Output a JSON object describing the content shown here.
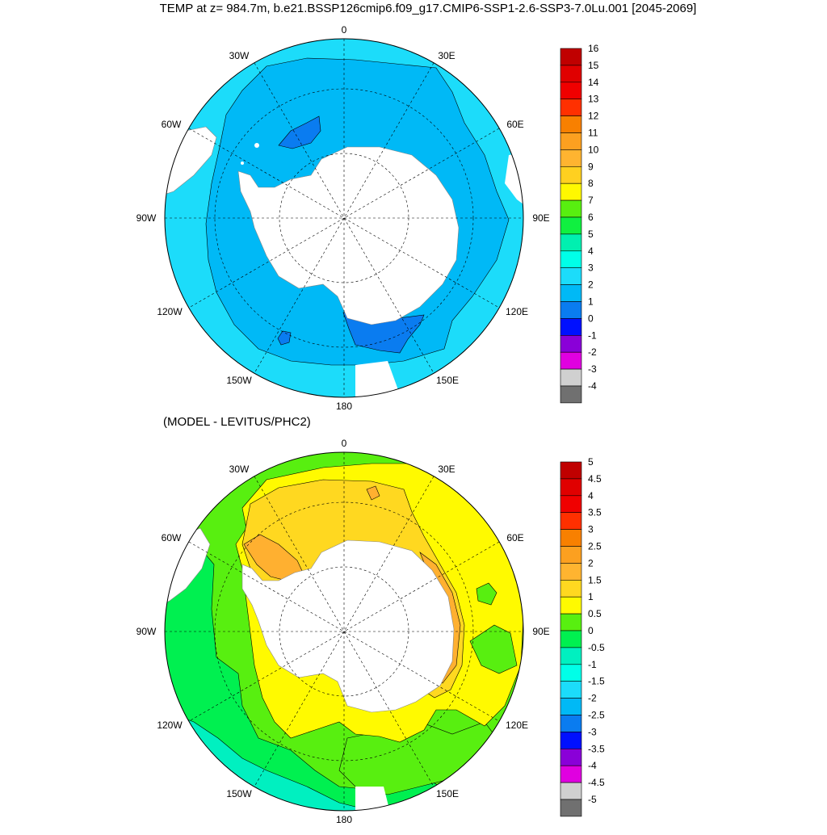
{
  "title": "TEMP at z= 984.7m, b.e21.BSSP126cmip6.f09_g17.CMIP6-SSP1-2.6-SSP3-7.0Lu.001 [2045-2069]",
  "subtitle": "(MODEL - LEVITUS/PHC2)",
  "longitude_labels": {
    "lon_0": "0",
    "lon_30E": "30E",
    "lon_60E": "60E",
    "lon_90E": "90E",
    "lon_120E": "120E",
    "lon_150E": "150E",
    "lon_180": "180",
    "lon_150W": "150W",
    "lon_120W": "120W",
    "lon_90W": "90W",
    "lon_60W": "60W",
    "lon_30W": "30W"
  },
  "colors": {
    "land": "#ffffff",
    "grid": "#000000",
    "ocean_base_top": "#1cdcfa",
    "ocean_mid_top": "#00b9f6",
    "ocean_deep_top": "#0a7cf0",
    "diff_green": "#58ef10",
    "diff_lightgreen": "#00f050",
    "diff_yellow": "#fffa00",
    "diff_gold": "#ffd820",
    "diff_orange": "#ffb030",
    "diff_aqua": "#00f0c0"
  },
  "top_colorbar": {
    "labels": [
      "16",
      "15",
      "14",
      "13",
      "12",
      "11",
      "10",
      "9",
      "8",
      "7",
      "6",
      "5",
      "4",
      "3",
      "2",
      "1",
      "0",
      "-1",
      "-2",
      "-3",
      "-4"
    ],
    "colors": [
      "#c00000",
      "#e00000",
      "#f00000",
      "#ff3000",
      "#f88000",
      "#fca020",
      "#ffb430",
      "#ffd020",
      "#fff800",
      "#58ef10",
      "#10f040",
      "#00f0b0",
      "#00ffe8",
      "#1cdcfa",
      "#00b9f6",
      "#0a7cf0",
      "#0010ff",
      "#8a00d8",
      "#e000e0",
      "#d0d0d0",
      "#707070"
    ]
  },
  "bottom_colorbar": {
    "labels": [
      "5",
      "4.5",
      "4",
      "3.5",
      "3",
      "2.5",
      "2",
      "1.5",
      "1",
      "0.5",
      "0",
      "-0.5",
      "-1",
      "-1.5",
      "-2",
      "-2.5",
      "-3",
      "-3.5",
      "-4",
      "-4.5",
      "-5"
    ],
    "colors": [
      "#c00000",
      "#e00000",
      "#f00000",
      "#ff3000",
      "#f88000",
      "#fca020",
      "#ffb430",
      "#ffd820",
      "#fffa00",
      "#58ef10",
      "#00f050",
      "#00f0c0",
      "#00ffe8",
      "#1cdcfa",
      "#00b9f6",
      "#0a7cf0",
      "#0010ff",
      "#8a00d8",
      "#e000e0",
      "#d0d0d0",
      "#707070"
    ]
  }
}
